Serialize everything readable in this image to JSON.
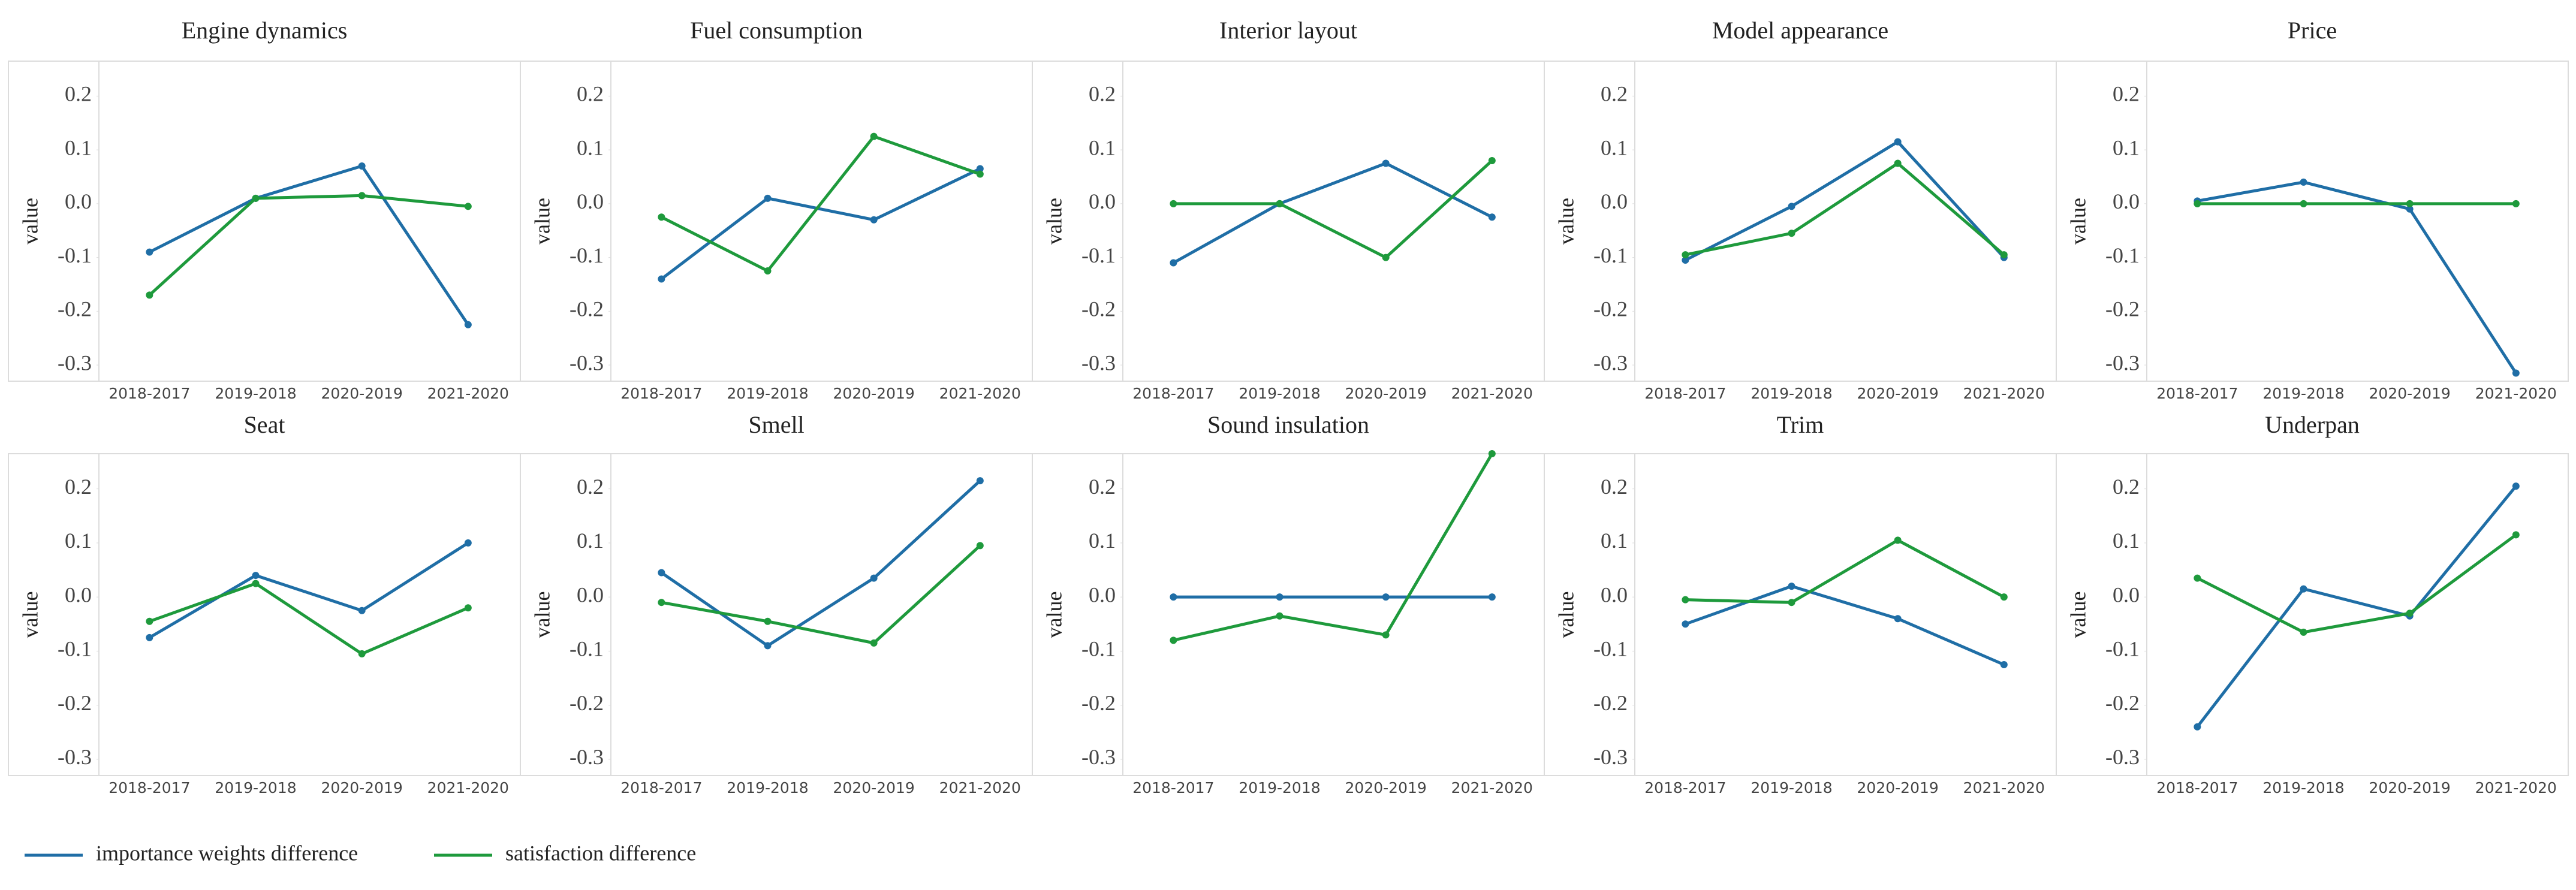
{
  "chart_data": [
    {
      "type": "line",
      "title": "Engine dynamics",
      "ylabel": "value",
      "categories": [
        "2018-2017",
        "2019-2018",
        "2020-2019",
        "2021-2020"
      ],
      "series": [
        {
          "name": "importance weights difference",
          "color": "#1f6ea6",
          "values": [
            -0.09,
            0.01,
            0.07,
            -0.225
          ]
        },
        {
          "name": "satisfaction difference",
          "color": "#1e9a3c",
          "values": [
            -0.17,
            0.01,
            0.015,
            -0.005
          ]
        }
      ],
      "ylim": [
        -0.33,
        0.265
      ],
      "yticks": [
        -0.3,
        -0.2,
        -0.1,
        {
          "value": 0,
          "label": "0.0"
        },
        0.1,
        0.2
      ]
    },
    {
      "type": "line",
      "title": "Fuel consumption",
      "ylabel": "value",
      "categories": [
        "2018-2017",
        "2019-2018",
        "2020-2019",
        "2021-2020"
      ],
      "series": [
        {
          "color": "#1f6ea6",
          "values": [
            -0.14,
            0.01,
            -0.03,
            0.065
          ]
        },
        {
          "color": "#1e9a3c",
          "values": [
            -0.025,
            -0.125,
            0.125,
            0.055
          ]
        }
      ],
      "ylim": [
        -0.33,
        0.265
      ],
      "yticks": [
        -0.3,
        -0.2,
        -0.1,
        {
          "value": 0,
          "label": "0.0"
        },
        0.1,
        0.2
      ]
    },
    {
      "type": "line",
      "title": "Interior layout",
      "ylabel": "value",
      "categories": [
        "2018-2017",
        "2019-2018",
        "2020-2019",
        "2021-2020"
      ],
      "series": [
        {
          "color": "#1f6ea6",
          "values": [
            -0.11,
            0.0,
            0.075,
            -0.025
          ]
        },
        {
          "color": "#1e9a3c",
          "values": [
            0.0,
            0.0,
            -0.1,
            0.08
          ]
        }
      ],
      "ylim": [
        -0.33,
        0.265
      ],
      "yticks": [
        -0.3,
        -0.2,
        -0.1,
        {
          "value": 0,
          "label": "0.0"
        },
        0.1,
        0.2
      ]
    },
    {
      "type": "line",
      "title": "Model appearance",
      "ylabel": "value",
      "categories": [
        "2018-2017",
        "2019-2018",
        "2020-2019",
        "2021-2020"
      ],
      "series": [
        {
          "color": "#1f6ea6",
          "values": [
            -0.105,
            -0.005,
            0.115,
            -0.1
          ]
        },
        {
          "color": "#1e9a3c",
          "values": [
            -0.095,
            -0.055,
            0.075,
            -0.095
          ]
        }
      ],
      "ylim": [
        -0.33,
        0.265
      ],
      "yticks": [
        -0.3,
        -0.2,
        -0.1,
        {
          "value": 0,
          "label": "0.0"
        },
        0.1,
        0.2
      ]
    },
    {
      "type": "line",
      "title": "Price",
      "ylabel": "value",
      "categories": [
        "2018-2017",
        "2019-2018",
        "2020-2019",
        "2021-2020"
      ],
      "series": [
        {
          "color": "#1f6ea6",
          "values": [
            0.005,
            0.04,
            -0.01,
            -0.315
          ]
        },
        {
          "color": "#1e9a3c",
          "values": [
            0.0,
            0.0,
            0.0,
            0.0
          ]
        }
      ],
      "ylim": [
        -0.33,
        0.265
      ],
      "yticks": [
        -0.3,
        -0.2,
        -0.1,
        {
          "value": 0,
          "label": "0.0"
        },
        0.1,
        0.2
      ]
    },
    {
      "type": "line",
      "title": "Seat",
      "ylabel": "value",
      "categories": [
        "2018-2017",
        "2019-2018",
        "2020-2019",
        "2021-2020"
      ],
      "series": [
        {
          "color": "#1f6ea6",
          "values": [
            -0.075,
            0.04,
            -0.025,
            0.1
          ]
        },
        {
          "color": "#1e9a3c",
          "values": [
            -0.045,
            0.025,
            -0.105,
            -0.02
          ]
        }
      ],
      "ylim": [
        -0.33,
        0.265
      ],
      "yticks": [
        -0.3,
        -0.2,
        -0.1,
        {
          "value": 0,
          "label": "0.0"
        },
        0.1,
        0.2
      ]
    },
    {
      "type": "line",
      "title": "Smell",
      "ylabel": "value",
      "categories": [
        "2018-2017",
        "2019-2018",
        "2020-2019",
        "2021-2020"
      ],
      "series": [
        {
          "color": "#1f6ea6",
          "values": [
            0.045,
            -0.09,
            0.035,
            0.215
          ]
        },
        {
          "color": "#1e9a3c",
          "values": [
            -0.01,
            -0.045,
            -0.085,
            0.095
          ]
        }
      ],
      "ylim": [
        -0.33,
        0.265
      ],
      "yticks": [
        -0.3,
        -0.2,
        -0.1,
        {
          "value": 0,
          "label": "0.0"
        },
        0.1,
        0.2
      ]
    },
    {
      "type": "line",
      "title": "Sound insulation",
      "ylabel": "value",
      "categories": [
        "2018-2017",
        "2019-2018",
        "2020-2019",
        "2021-2020"
      ],
      "series": [
        {
          "color": "#1f6ea6",
          "values": [
            0.0,
            0.0,
            0.0,
            0.0
          ]
        },
        {
          "color": "#1e9a3c",
          "values": [
            -0.08,
            -0.035,
            -0.07,
            0.265
          ]
        }
      ],
      "ylim": [
        -0.33,
        0.265
      ],
      "yticks": [
        -0.3,
        -0.2,
        -0.1,
        {
          "value": 0,
          "label": "0.0"
        },
        0.1,
        0.2
      ]
    },
    {
      "type": "line",
      "title": "Trim",
      "ylabel": "value",
      "categories": [
        "2018-2017",
        "2019-2018",
        "2020-2019",
        "2021-2020"
      ],
      "series": [
        {
          "color": "#1f6ea6",
          "values": [
            -0.05,
            0.02,
            -0.04,
            -0.125
          ]
        },
        {
          "color": "#1e9a3c",
          "values": [
            -0.005,
            -0.01,
            0.105,
            0.0
          ]
        }
      ],
      "ylim": [
        -0.33,
        0.265
      ],
      "yticks": [
        -0.3,
        -0.2,
        -0.1,
        {
          "value": 0,
          "label": "0.0"
        },
        0.1,
        0.2
      ]
    },
    {
      "type": "line",
      "title": "Underpan",
      "ylabel": "value",
      "categories": [
        "2018-2017",
        "2019-2018",
        "2020-2019",
        "2021-2020"
      ],
      "series": [
        {
          "color": "#1f6ea6",
          "values": [
            -0.24,
            0.015,
            -0.035,
            0.205
          ]
        },
        {
          "color": "#1e9a3c",
          "values": [
            0.035,
            -0.065,
            -0.03,
            0.115
          ]
        }
      ],
      "ylim": [
        -0.33,
        0.265
      ],
      "yticks": [
        -0.3,
        -0.2,
        -0.1,
        {
          "value": 0,
          "label": "0.0"
        },
        0.1,
        0.2
      ]
    }
  ]
}
